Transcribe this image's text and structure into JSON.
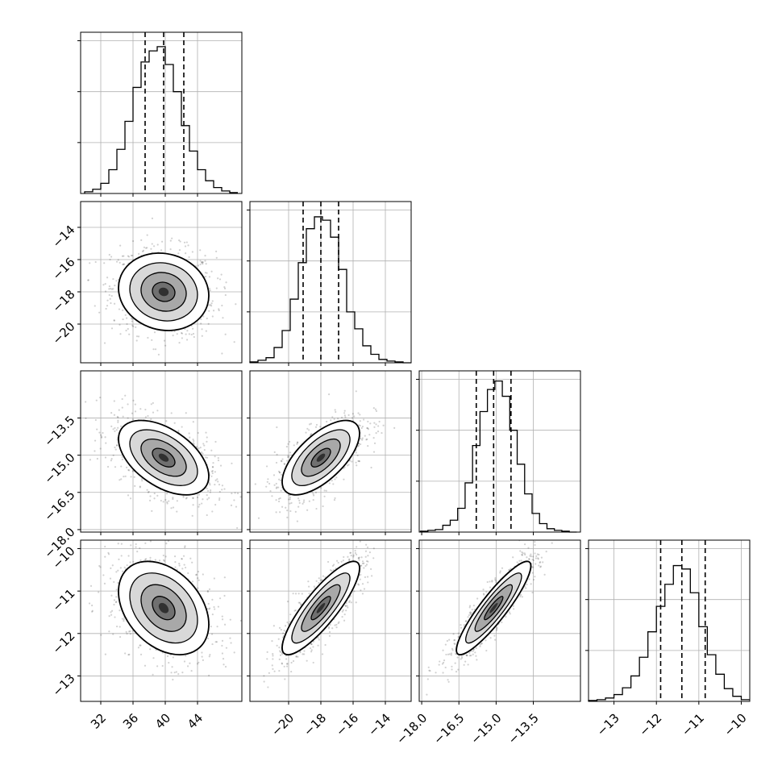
{
  "chart_data": {
    "type": "corner",
    "title": "",
    "grid": true,
    "quantile_lines": "dashed",
    "params": [
      {
        "range": [
          29.5,
          49.5
        ],
        "ticks": [
          "32",
          "36",
          "40",
          "44"
        ],
        "tick_values": [
          32,
          36,
          40,
          44
        ],
        "quantiles": [
          37.5,
          39.8,
          42.3
        ],
        "hist_x": [
          30.5,
          31.5,
          32.5,
          33.5,
          34.5,
          35.5,
          36.5,
          37.5,
          38.5,
          39.5,
          40.5,
          41.5,
          42.5,
          43.5,
          44.5,
          45.5,
          46.5,
          47.5,
          48.5
        ],
        "hist_y": [
          2,
          5,
          12,
          28,
          52,
          85,
          125,
          155,
          168,
          173,
          152,
          120,
          80,
          50,
          28,
          15,
          7,
          3,
          1
        ],
        "hist_ticks": [
          60,
          120,
          180
        ]
      },
      {
        "range": [
          -22.4,
          -12.4
        ],
        "ticks": [
          "−20",
          "−18",
          "−16",
          "−14"
        ],
        "tick_values": [
          -20,
          -18,
          -16,
          -14
        ],
        "quantiles": [
          -19.1,
          -18.0,
          -16.9
        ],
        "hist_x": [
          -22.15,
          -21.65,
          -21.15,
          -20.65,
          -20.15,
          -19.65,
          -19.15,
          -18.65,
          -18.15,
          -17.65,
          -17.15,
          -16.65,
          -16.15,
          -15.65,
          -15.15,
          -14.65,
          -14.15,
          -13.65,
          -13.15,
          -12.65
        ],
        "hist_y": [
          1,
          3,
          6,
          18,
          38,
          75,
          118,
          158,
          172,
          168,
          148,
          110,
          60,
          40,
          20,
          10,
          4,
          2,
          1,
          0
        ],
        "hist_ticks": [
          60,
          120,
          180
        ]
      },
      {
        "range": [
          -18.1,
          -11.6
        ],
        "ticks": [
          "−18.0",
          "−16.5",
          "−15.0",
          "−13.5"
        ],
        "tick_values": [
          -18.0,
          -16.5,
          -15.0,
          -13.5
        ],
        "quantiles": [
          -15.8,
          -15.1,
          -14.4
        ],
        "hist_x": [
          -17.9,
          -17.6,
          -17.3,
          -17.0,
          -16.7,
          -16.4,
          -16.1,
          -15.8,
          -15.5,
          -15.2,
          -14.9,
          -14.6,
          -14.3,
          -14.0,
          -13.7,
          -13.4,
          -13.1,
          -12.8,
          -12.5,
          -12.2,
          -11.9
        ],
        "hist_y": [
          1,
          2,
          3,
          8,
          14,
          28,
          58,
          102,
          142,
          168,
          178,
          160,
          120,
          80,
          45,
          22,
          10,
          4,
          2,
          1,
          0
        ],
        "hist_ticks": [
          60,
          120,
          180
        ]
      },
      {
        "range": [
          -13.6,
          -9.8
        ],
        "ticks": [
          "−13",
          "−12",
          "−11",
          "−10"
        ],
        "tick_values": [
          -13,
          -12,
          -11,
          -10
        ],
        "quantiles": [
          -11.9,
          -11.4,
          -10.85
        ],
        "hist_x": [
          -13.5,
          -13.3,
          -13.1,
          -12.9,
          -12.7,
          -12.5,
          -12.3,
          -12.1,
          -11.9,
          -11.7,
          -11.5,
          -11.3,
          -11.1,
          -10.9,
          -10.7,
          -10.5,
          -10.3,
          -10.1,
          -9.9
        ],
        "hist_y": [
          1,
          2,
          4,
          8,
          16,
          30,
          52,
          82,
          112,
          138,
          160,
          156,
          128,
          88,
          55,
          32,
          15,
          6,
          2
        ],
        "hist_ticks": [
          60,
          120,
          180
        ]
      }
    ],
    "pairs": [
      {
        "row": 1,
        "col": 0,
        "x": 39.8,
        "y": -18.0,
        "sx": 2.8,
        "sy": 1.2,
        "rho": -0.1
      },
      {
        "row": 2,
        "col": 0,
        "x": 39.8,
        "y": -15.1,
        "sx": 2.8,
        "sy": 0.75,
        "rho": -0.5
      },
      {
        "row": 2,
        "col": 1,
        "x": -18.0,
        "y": -15.1,
        "sx": 1.2,
        "sy": 0.75,
        "rho": 0.65
      },
      {
        "row": 3,
        "col": 0,
        "x": 39.8,
        "y": -11.4,
        "sx": 2.8,
        "sy": 0.55,
        "rho": -0.35
      },
      {
        "row": 3,
        "col": 1,
        "x": -18.0,
        "y": -11.4,
        "sx": 1.2,
        "sy": 0.55,
        "rho": 0.85
      },
      {
        "row": 3,
        "col": 2,
        "x": -15.1,
        "y": -11.4,
        "sx": 0.75,
        "sy": 0.55,
        "rho": 0.9
      }
    ],
    "contour_levels": [
      0.5,
      1.0,
      1.5,
      2.0
    ]
  }
}
